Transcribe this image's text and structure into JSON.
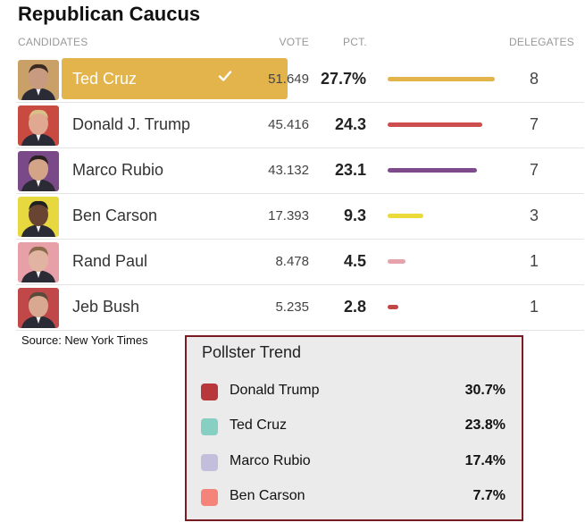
{
  "title": "Republican Caucus",
  "headers": {
    "candidates": "CANDIDATES",
    "vote": "VOTE",
    "pct": "PCT.",
    "delegates": "DELEGATES"
  },
  "source": "Source: New York Times",
  "chart_data": [
    {
      "type": "table",
      "title": "Republican Caucus",
      "columns": [
        "CANDIDATES",
        "VOTE",
        "PCT.",
        "DELEGATES"
      ],
      "rows": [
        {
          "name": "Ted Cruz",
          "vote": "51.649",
          "pct": 27.7,
          "pct_label": "27.7%",
          "delegates": "8",
          "winner": true,
          "color": "#e3b34c",
          "photo_bg": "#c8a068",
          "skin": "#c89a80",
          "hair": "#3a2a20"
        },
        {
          "name": "Donald J. Trump",
          "vote": "45.416",
          "pct": 24.3,
          "pct_label": "24.3",
          "delegates": "7",
          "winner": false,
          "color": "#cc4e4e",
          "photo_bg": "#c84a40",
          "skin": "#e0a890",
          "hair": "#d8c088"
        },
        {
          "name": "Marco Rubio",
          "vote": "43.132",
          "pct": 23.1,
          "pct_label": "23.1",
          "delegates": "7",
          "winner": false,
          "color": "#7f4a8c",
          "photo_bg": "#7a4a88",
          "skin": "#d4a488",
          "hair": "#2a2020"
        },
        {
          "name": "Ben Carson",
          "vote": "17.393",
          "pct": 9.3,
          "pct_label": "9.3",
          "delegates": "3",
          "winner": false,
          "color": "#ecd93a",
          "photo_bg": "#e8d840",
          "skin": "#6a4432",
          "hair": "#202020"
        },
        {
          "name": "Rand Paul",
          "vote": "8.478",
          "pct": 4.5,
          "pct_label": "4.5",
          "delegates": "1",
          "winner": false,
          "color": "#e6a3ab",
          "photo_bg": "#e8a0a8",
          "skin": "#e0b4a0",
          "hair": "#8a6a4a"
        },
        {
          "name": "Jeb Bush",
          "vote": "5.235",
          "pct": 2.8,
          "pct_label": "2.8",
          "delegates": "1",
          "winner": false,
          "color": "#c14646",
          "photo_bg": "#c04848",
          "skin": "#d8a890",
          "hair": "#5a4a3a"
        }
      ]
    },
    {
      "type": "table",
      "title": "Pollster Trend",
      "rows": [
        {
          "name": "Donald Trump",
          "value": 30.7,
          "label": "30.7%",
          "color": "#b8373a"
        },
        {
          "name": "Ted Cruz",
          "value": 23.8,
          "label": "23.8%",
          "color": "#86cfc2"
        },
        {
          "name": "Marco Rubio",
          "value": 17.4,
          "label": "17.4%",
          "color": "#c3bedb"
        },
        {
          "name": "Ben Carson",
          "value": 7.7,
          "label": "7.7%",
          "color": "#f4837a"
        }
      ]
    }
  ]
}
